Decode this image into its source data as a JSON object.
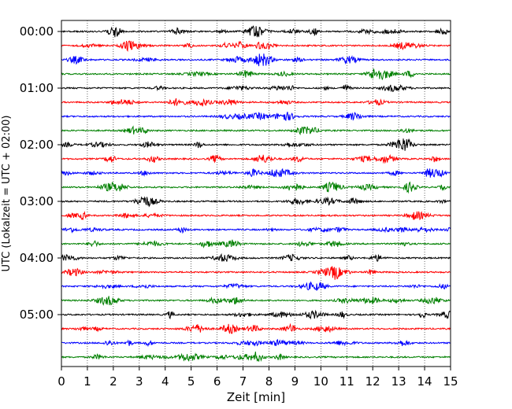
{
  "chart_data": {
    "type": "line",
    "subtype": "helicorder (seismogram drum plot)",
    "xlabel": "Zeit  [min]",
    "ylabel": "UTC (Lokalzeit = UTC + 02:00)",
    "xlim": [
      0,
      15
    ],
    "x_ticks": [
      0,
      1,
      2,
      3,
      4,
      5,
      6,
      7,
      8,
      9,
      10,
      11,
      12,
      13,
      14,
      15
    ],
    "x_tick_labels": [
      "0",
      "1",
      "2",
      "3",
      "4",
      "5",
      "6",
      "7",
      "8",
      "9",
      "10",
      "11",
      "12",
      "13",
      "14",
      "15"
    ],
    "x_grid": "dotted vertical lines at each minute",
    "row_interval_min": 15,
    "y_tick_labels": [
      "00:00",
      "01:00",
      "02:00",
      "03:00",
      "04:00",
      "05:00"
    ],
    "y_tick_rows": [
      0,
      4,
      8,
      12,
      16,
      20
    ],
    "colors": [
      "#000000",
      "#ff0000",
      "#0000ff",
      "#008000"
    ],
    "trace_count": 24,
    "traces": [
      {
        "start": "00:00",
        "color": "#000000"
      },
      {
        "start": "00:15",
        "color": "#ff0000"
      },
      {
        "start": "00:30",
        "color": "#0000ff"
      },
      {
        "start": "00:45",
        "color": "#008000"
      },
      {
        "start": "01:00",
        "color": "#000000"
      },
      {
        "start": "01:15",
        "color": "#ff0000"
      },
      {
        "start": "01:30",
        "color": "#0000ff"
      },
      {
        "start": "01:45",
        "color": "#008000"
      },
      {
        "start": "02:00",
        "color": "#000000"
      },
      {
        "start": "02:15",
        "color": "#ff0000"
      },
      {
        "start": "02:30",
        "color": "#0000ff"
      },
      {
        "start": "02:45",
        "color": "#008000"
      },
      {
        "start": "03:00",
        "color": "#000000"
      },
      {
        "start": "03:15",
        "color": "#ff0000"
      },
      {
        "start": "03:30",
        "color": "#0000ff"
      },
      {
        "start": "03:45",
        "color": "#008000"
      },
      {
        "start": "04:00",
        "color": "#000000"
      },
      {
        "start": "04:15",
        "color": "#ff0000"
      },
      {
        "start": "04:30",
        "color": "#0000ff"
      },
      {
        "start": "04:45",
        "color": "#008000"
      },
      {
        "start": "05:00",
        "color": "#000000"
      },
      {
        "start": "05:15",
        "color": "#ff0000"
      },
      {
        "start": "05:30",
        "color": "#0000ff"
      },
      {
        "start": "05:45",
        "color": "#008000"
      }
    ]
  }
}
